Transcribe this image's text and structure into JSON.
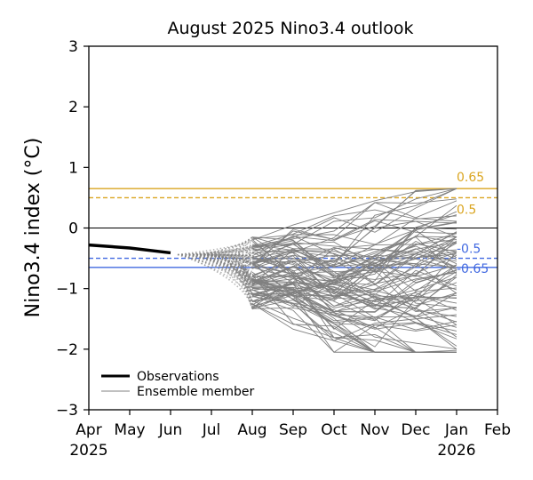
{
  "chart_data": {
    "type": "line",
    "title": "August 2025 Nino3.4 outlook",
    "ylabel": "Nino3.4 index (°C)",
    "xlabel": "",
    "ylim": [
      -3,
      3
    ],
    "yticks": [
      "3",
      "2",
      "1",
      "0",
      "−1",
      "−2",
      "−3"
    ],
    "xticks": [
      {
        "label": "Apr",
        "sub": "2025"
      },
      {
        "label": "May",
        "sub": ""
      },
      {
        "label": "Jun",
        "sub": ""
      },
      {
        "label": "Jul",
        "sub": ""
      },
      {
        "label": "Aug",
        "sub": ""
      },
      {
        "label": "Sep",
        "sub": ""
      },
      {
        "label": "Oct",
        "sub": ""
      },
      {
        "label": "Nov",
        "sub": ""
      },
      {
        "label": "Dec",
        "sub": ""
      },
      {
        "label": "Jan",
        "sub": "2026"
      },
      {
        "label": "Feb",
        "sub": ""
      }
    ],
    "observations": {
      "name": "Observations",
      "x": [
        "Apr 2025",
        "May 2025",
        "Jun 2025"
      ],
      "values": [
        -0.28,
        -0.33,
        -0.41
      ]
    },
    "ensemble": {
      "name": "Ensemble member",
      "x": [
        "Aug 2025",
        "Sep 2025",
        "Oct 2025",
        "Nov 2025",
        "Dec 2025",
        "Jan 2026"
      ],
      "member_count": 100,
      "sample_members": [
        [
          -0.2,
          0.05,
          0.25,
          0.45,
          0.6,
          0.65
        ],
        [
          -0.3,
          -0.1,
          0.2,
          0.3,
          0.15,
          0.2
        ],
        [
          -0.5,
          -0.7,
          -1.4,
          -1.8,
          -1.9,
          -2.0
        ],
        [
          -0.9,
          -1.1,
          -2.05,
          -1.6,
          -1.7,
          -1.6
        ],
        [
          -0.6,
          -0.4,
          -0.8,
          -0.5,
          -0.9,
          -0.7
        ]
      ],
      "range": [
        -2.05,
        0.65
      ]
    },
    "reference_lines": [
      {
        "value": 0.65,
        "label": "0.65",
        "color": "#DAA520",
        "style": "solid"
      },
      {
        "value": 0.5,
        "label": "0.5",
        "color": "#DAA520",
        "style": "dashed"
      },
      {
        "value": 0.0,
        "label": "",
        "color": "#000000",
        "style": "solid"
      },
      {
        "value": -0.5,
        "label": "-0.5",
        "color": "#4169E1",
        "style": "dashed"
      },
      {
        "value": -0.65,
        "label": "-0.65",
        "color": "#4169E1",
        "style": "solid"
      }
    ],
    "colors": {
      "observations": "#000000",
      "ensemble": "#808080",
      "el_nino": "#DAA520",
      "la_nina": "#4169E1"
    },
    "legend": {
      "position": "lower-left",
      "entries": [
        "Observations",
        "Ensemble member"
      ]
    },
    "grid": false
  }
}
